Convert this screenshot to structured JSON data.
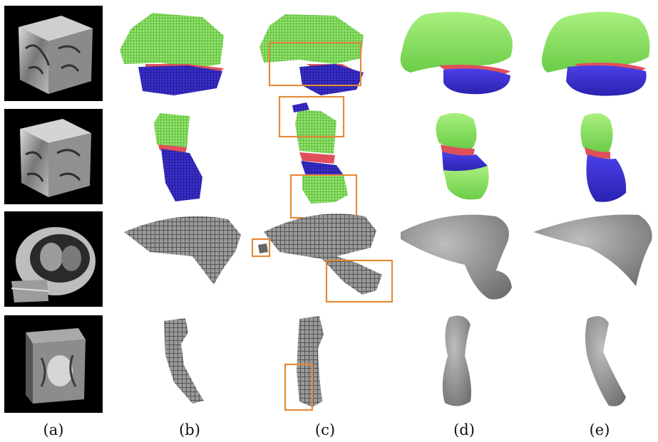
{
  "figure": {
    "columns": [
      {
        "id": "a",
        "label": "(a)"
      },
      {
        "id": "b",
        "label": "(b)"
      },
      {
        "id": "c",
        "label": "(c)"
      },
      {
        "id": "d",
        "label": "(d)"
      },
      {
        "id": "e",
        "label": "(e)"
      }
    ],
    "rows": 4,
    "colors": {
      "green": "#8ee46a",
      "blue": "#3a2fd0",
      "red": "#e0505a",
      "gray": "#8a8a8a",
      "highlight": "#e58a3a",
      "thumbnail_bg": "#000000"
    }
  }
}
